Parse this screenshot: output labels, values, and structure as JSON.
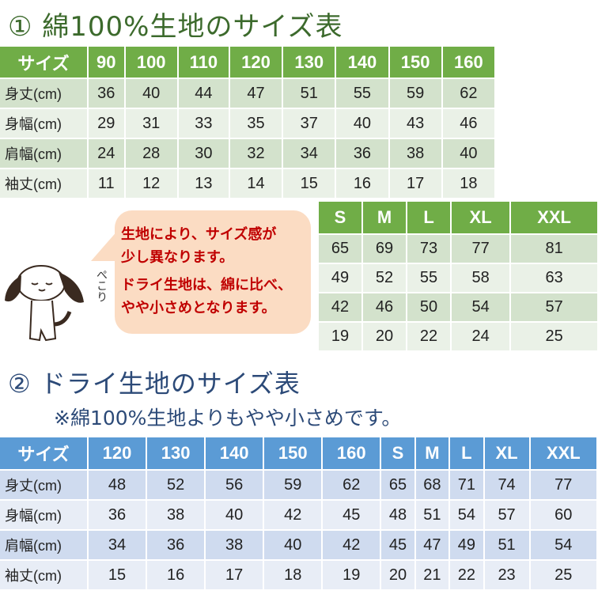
{
  "section1": {
    "title": "① 綿100%生地のサイズ表",
    "header": [
      "サイズ",
      "90",
      "100",
      "110",
      "120",
      "130",
      "140",
      "150",
      "160"
    ],
    "rows": [
      {
        "label": "身丈(cm)",
        "values": [
          "36",
          "40",
          "44",
          "47",
          "51",
          "55",
          "59",
          "62"
        ]
      },
      {
        "label": "身幅(cm)",
        "values": [
          "29",
          "31",
          "33",
          "35",
          "37",
          "40",
          "43",
          "46"
        ]
      },
      {
        "label": "肩幅(cm)",
        "values": [
          "24",
          "28",
          "30",
          "32",
          "34",
          "36",
          "38",
          "40"
        ]
      },
      {
        "label": "袖丈(cm)",
        "values": [
          "11",
          "12",
          "13",
          "14",
          "15",
          "16",
          "17",
          "18"
        ]
      }
    ],
    "adult_header": [
      "S",
      "M",
      "L",
      "XL",
      "XXL"
    ],
    "adult_rows": [
      [
        "65",
        "69",
        "73",
        "77",
        "81"
      ],
      [
        "49",
        "52",
        "55",
        "58",
        "63"
      ],
      [
        "42",
        "46",
        "50",
        "54",
        "57"
      ],
      [
        "19",
        "20",
        "22",
        "24",
        "25"
      ]
    ],
    "color": "#70ad47"
  },
  "callout": {
    "lines": [
      "生地により、サイズ感が",
      "少し異なります。",
      "ドライ生地は、綿に比べ、",
      "やや小さめとなります。"
    ],
    "mascot_text": "ぺこり"
  },
  "section2": {
    "title": "② ドライ生地のサイズ表",
    "note": "※綿100%生地よりもやや小さめです。",
    "header": [
      "サイズ",
      "120",
      "130",
      "140",
      "150",
      "160",
      "S",
      "M",
      "L",
      "XL",
      "XXL"
    ],
    "rows": [
      {
        "label": "身丈(cm)",
        "values": [
          "48",
          "52",
          "56",
          "59",
          "62",
          "65",
          "68",
          "71",
          "74",
          "77"
        ]
      },
      {
        "label": "身幅(cm)",
        "values": [
          "36",
          "38",
          "40",
          "42",
          "45",
          "48",
          "51",
          "54",
          "57",
          "60"
        ]
      },
      {
        "label": "肩幅(cm)",
        "values": [
          "34",
          "36",
          "38",
          "40",
          "42",
          "45",
          "47",
          "49",
          "51",
          "54"
        ]
      },
      {
        "label": "袖丈(cm)",
        "values": [
          "15",
          "16",
          "17",
          "18",
          "19",
          "20",
          "21",
          "22",
          "23",
          "25"
        ]
      }
    ],
    "color": "#5b9bd5"
  }
}
